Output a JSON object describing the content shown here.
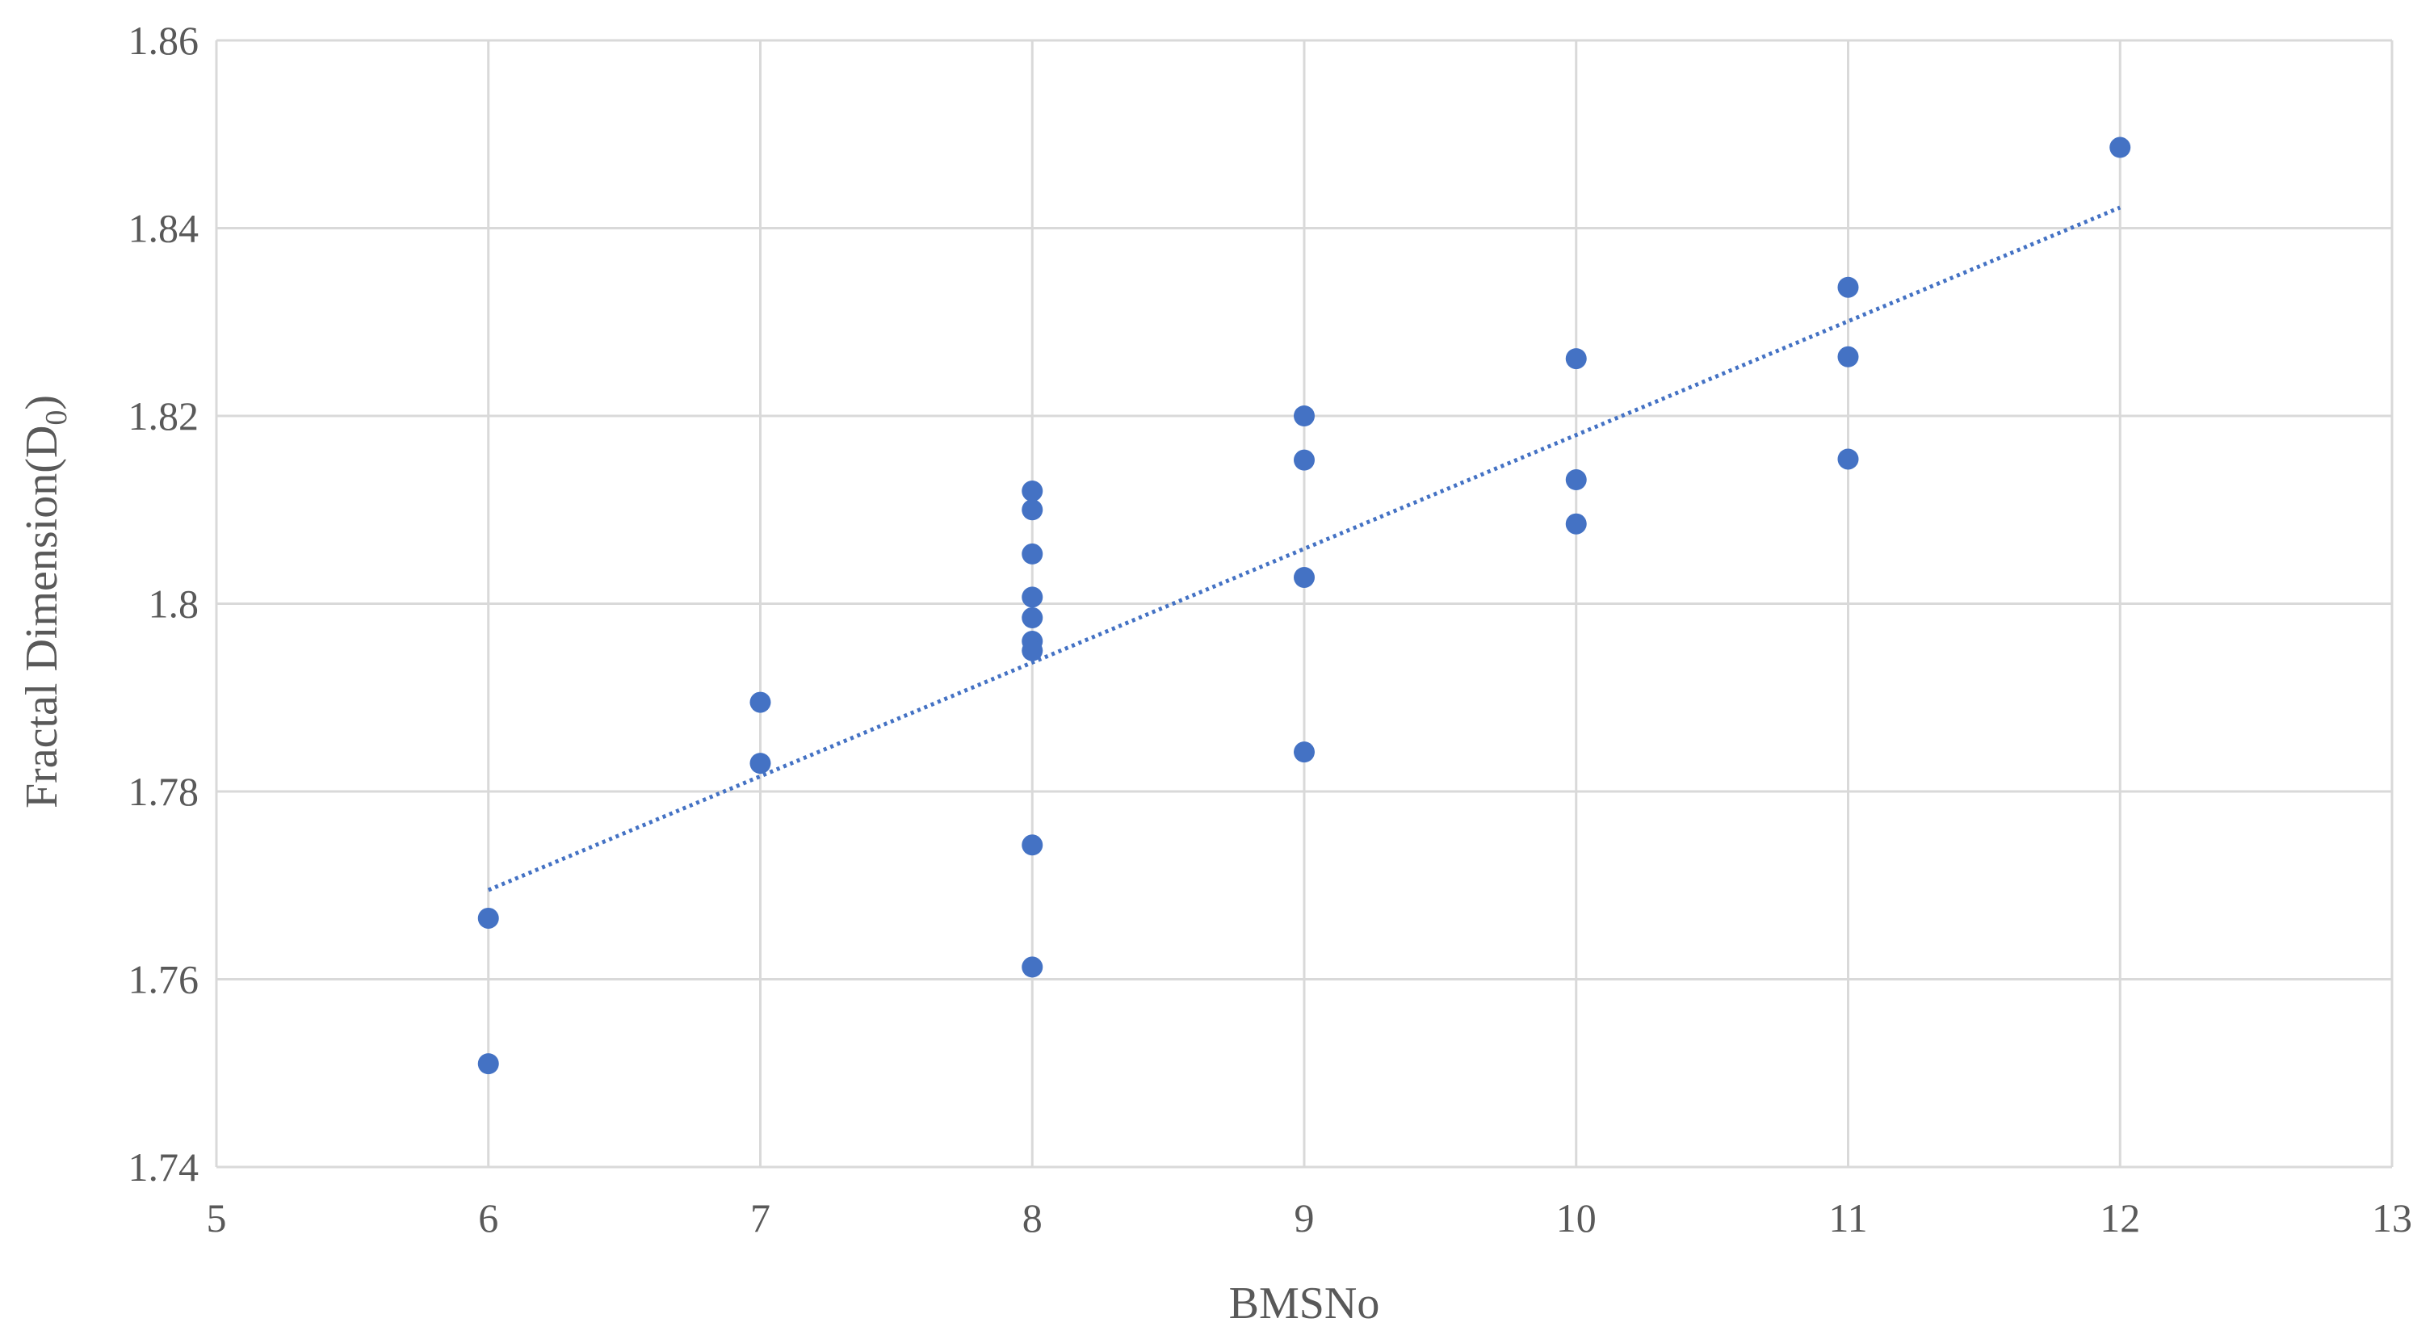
{
  "chart_data": {
    "type": "scatter",
    "xlabel": "BMSNo",
    "ylabel": "Fractal Dimension(D",
    "ylabel_subscript": "0",
    "ylabel_suffix": ")",
    "xlim": [
      5,
      13
    ],
    "ylim": [
      1.74,
      1.86
    ],
    "x_ticks": [
      5,
      6,
      7,
      8,
      9,
      10,
      11,
      12,
      13
    ],
    "x_tick_labels": [
      "5",
      "6",
      "7",
      "8",
      "9",
      "10",
      "11",
      "12",
      "13"
    ],
    "y_ticks": [
      1.74,
      1.76,
      1.78,
      1.8,
      1.82,
      1.84,
      1.86
    ],
    "y_tick_labels": [
      "1.74",
      "1.76",
      "1.78",
      "1.8",
      "1.82",
      "1.84",
      "1.86"
    ],
    "grid": true,
    "legend": "none",
    "marker_color": "#4472C4",
    "trendline_color": "#4472C4",
    "trendline": {
      "style": "dotted",
      "x": [
        6,
        12
      ],
      "y": [
        1.7695,
        1.8422
      ]
    },
    "points": [
      {
        "x": 6,
        "y": 1.7665
      },
      {
        "x": 6,
        "y": 1.751
      },
      {
        "x": 7,
        "y": 1.7895
      },
      {
        "x": 7,
        "y": 1.783
      },
      {
        "x": 8,
        "y": 1.812
      },
      {
        "x": 8,
        "y": 1.81
      },
      {
        "x": 8,
        "y": 1.8053
      },
      {
        "x": 8,
        "y": 1.8007
      },
      {
        "x": 8,
        "y": 1.7985
      },
      {
        "x": 8,
        "y": 1.796
      },
      {
        "x": 8,
        "y": 1.795
      },
      {
        "x": 8,
        "y": 1.7743
      },
      {
        "x": 8,
        "y": 1.7613
      },
      {
        "x": 9,
        "y": 1.82
      },
      {
        "x": 9,
        "y": 1.8153
      },
      {
        "x": 9,
        "y": 1.8028
      },
      {
        "x": 9,
        "y": 1.7842
      },
      {
        "x": 10,
        "y": 1.8261
      },
      {
        "x": 10,
        "y": 1.8132
      },
      {
        "x": 10,
        "y": 1.8085
      },
      {
        "x": 11,
        "y": 1.8337
      },
      {
        "x": 11,
        "y": 1.8263
      },
      {
        "x": 11,
        "y": 1.8154
      },
      {
        "x": 12,
        "y": 1.8486
      }
    ]
  }
}
